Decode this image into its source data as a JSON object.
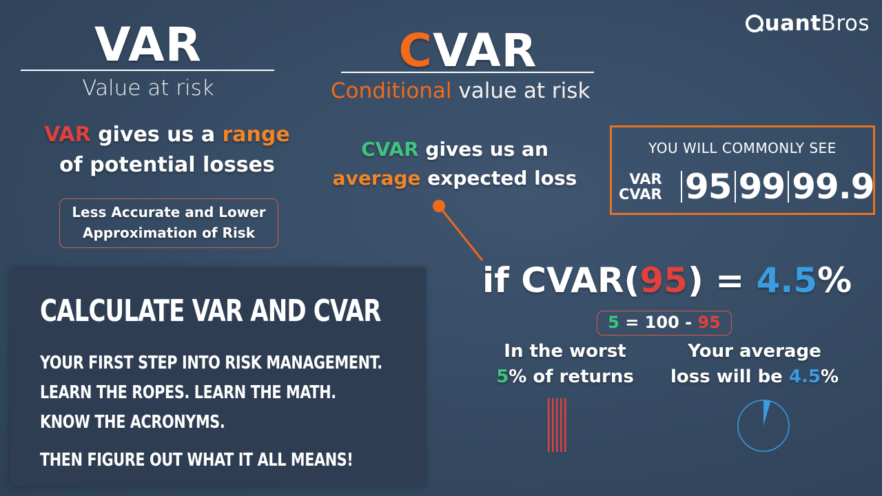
{
  "logo": {
    "bold": "uant",
    "light": "Bros"
  },
  "var": {
    "title": "VAR",
    "subtitle": "Value at risk",
    "desc_part1": "VAR",
    "desc_part2": " gives us a ",
    "desc_part3": "range",
    "desc_part4": "of potential losses",
    "box_line1": "Less Accurate and Lower",
    "box_line2": "Approximation of Risk"
  },
  "cvar": {
    "title_c": "C",
    "title_rest": "VAR",
    "subtitle_accent": "Conditional",
    "subtitle_rest": " value at risk",
    "desc_part1": "CVAR",
    "desc_part2": " gives us an",
    "desc_part3": "average",
    "desc_part4": " expected loss"
  },
  "common": {
    "heading": "YOU WILL COMMONLY SEE",
    "label1": "VAR",
    "label2": "CVAR",
    "values": [
      "95",
      "99",
      "99.9"
    ]
  },
  "formula": {
    "prefix": "if CVAR(",
    "confidence": "95",
    "middle": ") = ",
    "result": "4.5",
    "suffix": "%",
    "mini_left": "5",
    "mini_mid": " = 100 - ",
    "mini_right": "95"
  },
  "worst": {
    "line1": "In the worst",
    "pct": "5",
    "line2_rest": "% of returns"
  },
  "avg": {
    "line1": "Your average",
    "line2_pre": "loss will be ",
    "value": "4.5",
    "suffix": "%"
  },
  "panel": {
    "title": "CALCULATE VAR AND CVAR",
    "line1": "YOUR FIRST STEP INTO RISK MANAGEMENT.",
    "line2": "LEARN THE ROPES. LEARN THE MATH.",
    "line3": "KNOW THE ACRONYMS.",
    "line4": "THEN FIGURE OUT WHAT IT ALL MEANS!"
  },
  "colors": {
    "orange": "#f26a1b",
    "red": "#e0413e",
    "green": "#3fc47e",
    "blue": "#3d9be0",
    "background": "#354a62"
  },
  "pie_fraction": 0.045,
  "bar_count": 5
}
